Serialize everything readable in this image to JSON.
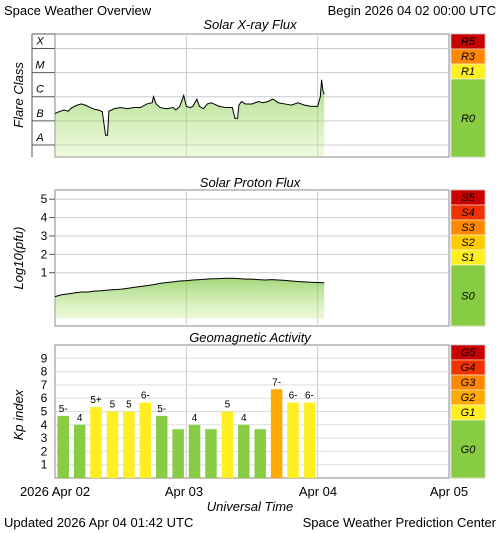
{
  "header": {
    "title": "Space Weather Overview",
    "begin": "Begin 2026 04 02 00:00 UTC"
  },
  "footer": {
    "updated": "Updated 2026 Apr 04 01:42 UTC",
    "source": "Space Weather Prediction Center"
  },
  "xaxis": {
    "ticks": [
      "2026 Apr 02",
      "Apr 03",
      "Apr 04",
      "Apr 05"
    ],
    "label": "Universal Time",
    "range_days": [
      0,
      3
    ]
  },
  "chart_data": [
    {
      "type": "line",
      "title": "Solar X-ray Flux",
      "ylabel": "Flare Class",
      "ticks": [
        "A",
        "B",
        "C",
        "M",
        "X"
      ],
      "ylim": [
        -8.5,
        -3.4
      ],
      "x_unit": "days since 2026 Apr 02 00:00 UTC",
      "series": [
        {
          "values": [
            [
              0.0,
              -6.7
            ],
            [
              0.03,
              -6.62
            ],
            [
              0.07,
              -6.55
            ],
            [
              0.1,
              -6.6
            ],
            [
              0.13,
              -6.45
            ],
            [
              0.17,
              -6.35
            ],
            [
              0.2,
              -6.3
            ],
            [
              0.23,
              -6.35
            ],
            [
              0.27,
              -6.45
            ],
            [
              0.3,
              -6.52
            ],
            [
              0.33,
              -6.55
            ],
            [
              0.36,
              -6.62
            ],
            [
              0.385,
              -7.6
            ],
            [
              0.4,
              -7.6
            ],
            [
              0.41,
              -6.6
            ],
            [
              0.45,
              -6.5
            ],
            [
              0.5,
              -6.45
            ],
            [
              0.55,
              -6.5
            ],
            [
              0.6,
              -6.45
            ],
            [
              0.65,
              -6.45
            ],
            [
              0.7,
              -6.3
            ],
            [
              0.74,
              -6.25
            ],
            [
              0.75,
              -6.0
            ],
            [
              0.77,
              -6.3
            ],
            [
              0.8,
              -6.45
            ],
            [
              0.85,
              -6.5
            ],
            [
              0.9,
              -6.45
            ],
            [
              0.92,
              -6.55
            ],
            [
              0.95,
              -6.4
            ],
            [
              0.98,
              -5.95
            ],
            [
              1.0,
              -6.4
            ],
            [
              1.03,
              -6.45
            ],
            [
              1.05,
              -6.4
            ],
            [
              1.08,
              -6.1
            ],
            [
              1.1,
              -6.4
            ],
            [
              1.13,
              -6.5
            ],
            [
              1.16,
              -6.3
            ],
            [
              1.19,
              -6.25
            ],
            [
              1.21,
              -6.3
            ],
            [
              1.25,
              -6.4
            ],
            [
              1.3,
              -6.45
            ],
            [
              1.35,
              -6.45
            ],
            [
              1.37,
              -6.9
            ],
            [
              1.39,
              -6.9
            ],
            [
              1.4,
              -6.35
            ],
            [
              1.42,
              -6.2
            ],
            [
              1.45,
              -6.3
            ],
            [
              1.5,
              -6.3
            ],
            [
              1.55,
              -6.2
            ],
            [
              1.58,
              -6.25
            ],
            [
              1.62,
              -6.2
            ],
            [
              1.66,
              -6.1
            ],
            [
              1.7,
              -6.25
            ],
            [
              1.75,
              -6.3
            ],
            [
              1.8,
              -6.35
            ],
            [
              1.85,
              -6.25
            ],
            [
              1.9,
              -6.35
            ],
            [
              1.95,
              -6.4
            ],
            [
              2.0,
              -6.4
            ],
            [
              2.02,
              -6.0
            ],
            [
              2.03,
              -5.3
            ],
            [
              2.04,
              -5.75
            ],
            [
              2.05,
              -5.9
            ]
          ]
        }
      ],
      "scale": [
        {
          "label": "R5",
          "color": "#c80000"
        },
        {
          "label": "R3",
          "color": "#ff8800"
        },
        {
          "label": "R1",
          "color": "#ffee22"
        },
        {
          "label": "R0",
          "color": "#88cc44"
        }
      ]
    },
    {
      "type": "area",
      "title": "Solar Proton Flux",
      "ylabel": "Log10(pfu)",
      "ticks": [
        "1",
        "2",
        "3",
        "4",
        "5"
      ],
      "ylim": [
        -1.9,
        5.5
      ],
      "x_unit": "days since 2026 Apr 02 00:00 UTC",
      "series": [
        {
          "values": [
            [
              0.0,
              -0.3
            ],
            [
              0.05,
              -0.2
            ],
            [
              0.1,
              -0.15
            ],
            [
              0.15,
              -0.1
            ],
            [
              0.2,
              -0.05
            ],
            [
              0.25,
              -0.05
            ],
            [
              0.3,
              0.0
            ],
            [
              0.35,
              0.02
            ],
            [
              0.4,
              0.05
            ],
            [
              0.45,
              0.08
            ],
            [
              0.5,
              0.1
            ],
            [
              0.55,
              0.15
            ],
            [
              0.6,
              0.2
            ],
            [
              0.65,
              0.25
            ],
            [
              0.7,
              0.3
            ],
            [
              0.75,
              0.35
            ],
            [
              0.8,
              0.42
            ],
            [
              0.85,
              0.47
            ],
            [
              0.9,
              0.5
            ],
            [
              0.95,
              0.55
            ],
            [
              1.0,
              0.57
            ],
            [
              1.05,
              0.6
            ],
            [
              1.1,
              0.62
            ],
            [
              1.15,
              0.65
            ],
            [
              1.2,
              0.67
            ],
            [
              1.25,
              0.68
            ],
            [
              1.3,
              0.7
            ],
            [
              1.35,
              0.7
            ],
            [
              1.4,
              0.68
            ],
            [
              1.45,
              0.65
            ],
            [
              1.5,
              0.65
            ],
            [
              1.55,
              0.62
            ],
            [
              1.6,
              0.6
            ],
            [
              1.65,
              0.62
            ],
            [
              1.7,
              0.6
            ],
            [
              1.75,
              0.58
            ],
            [
              1.8,
              0.55
            ],
            [
              1.85,
              0.52
            ],
            [
              1.9,
              0.5
            ],
            [
              1.95,
              0.48
            ],
            [
              2.0,
              0.47
            ],
            [
              2.05,
              0.45
            ]
          ]
        }
      ],
      "scale": [
        {
          "label": "S5",
          "color": "#c80000"
        },
        {
          "label": "S4",
          "color": "#ee3300"
        },
        {
          "label": "S3",
          "color": "#ff8800"
        },
        {
          "label": "S2",
          "color": "#ffcc00"
        },
        {
          "label": "S1",
          "color": "#ffee22"
        },
        {
          "label": "S0",
          "color": "#88cc44"
        }
      ]
    },
    {
      "type": "bar",
      "title": "Geomagnetic Activity",
      "ylabel": "Kp index",
      "ticks": [
        "1",
        "2",
        "3",
        "4",
        "5",
        "6",
        "7",
        "8",
        "9"
      ],
      "ylim": [
        0,
        10
      ],
      "x_unit": "days since 2026 Apr 02 00:00 UTC",
      "bars": [
        {
          "x": 0.0625,
          "value": 4.67,
          "label": "5-",
          "color": "#88cc44"
        },
        {
          "x": 0.1875,
          "value": 4.0,
          "label": "4",
          "color": "#88cc44"
        },
        {
          "x": 0.3125,
          "value": 5.33,
          "label": "5+",
          "color": "#ffee22"
        },
        {
          "x": 0.4375,
          "value": 5.0,
          "label": "5",
          "color": "#ffee22"
        },
        {
          "x": 0.5625,
          "value": 5.0,
          "label": "5",
          "color": "#ffee22"
        },
        {
          "x": 0.6875,
          "value": 5.67,
          "label": "6-",
          "color": "#ffee22"
        },
        {
          "x": 0.8125,
          "value": 4.67,
          "label": "5-",
          "color": "#88cc44"
        },
        {
          "x": 0.9375,
          "value": 3.67,
          "label": "",
          "color": "#88cc44"
        },
        {
          "x": 1.0625,
          "value": 4.0,
          "label": "4",
          "color": "#88cc44"
        },
        {
          "x": 1.1875,
          "value": 3.67,
          "label": "",
          "color": "#88cc44"
        },
        {
          "x": 1.3125,
          "value": 5.0,
          "label": "5",
          "color": "#ffee22"
        },
        {
          "x": 1.4375,
          "value": 4.0,
          "label": "4",
          "color": "#88cc44"
        },
        {
          "x": 1.5625,
          "value": 3.67,
          "label": "",
          "color": "#88cc44"
        },
        {
          "x": 1.6875,
          "value": 6.67,
          "label": "7-",
          "color": "#ffaa00"
        },
        {
          "x": 1.8125,
          "value": 5.67,
          "label": "6-",
          "color": "#ffee22"
        },
        {
          "x": 1.9375,
          "value": 5.67,
          "label": "6-",
          "color": "#ffee22"
        }
      ],
      "scale": [
        {
          "label": "G5",
          "color": "#c80000"
        },
        {
          "label": "G4",
          "color": "#ee3300"
        },
        {
          "label": "G3",
          "color": "#ff8800"
        },
        {
          "label": "G2",
          "color": "#ffaa00"
        },
        {
          "label": "G1",
          "color": "#ffee22"
        },
        {
          "label": "G0",
          "color": "#88cc44"
        }
      ]
    }
  ]
}
